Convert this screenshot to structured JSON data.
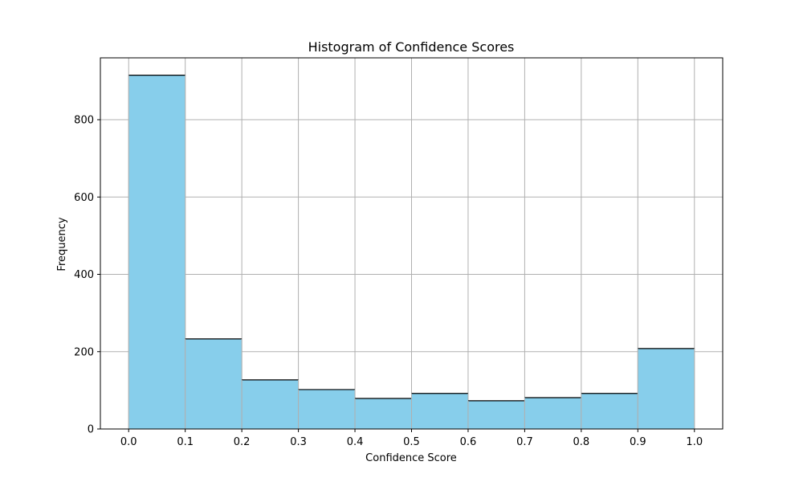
{
  "chart_data": {
    "type": "bar",
    "title": "Histogram of Confidence Scores",
    "xlabel": "Confidence Score",
    "ylabel": "Frequency",
    "bins": [
      {
        "start": 0.0,
        "end": 0.1,
        "count": 915
      },
      {
        "start": 0.1,
        "end": 0.2,
        "count": 233
      },
      {
        "start": 0.2,
        "end": 0.3,
        "count": 127
      },
      {
        "start": 0.3,
        "end": 0.4,
        "count": 102
      },
      {
        "start": 0.4,
        "end": 0.5,
        "count": 79
      },
      {
        "start": 0.5,
        "end": 0.6,
        "count": 92
      },
      {
        "start": 0.6,
        "end": 0.7,
        "count": 73
      },
      {
        "start": 0.7,
        "end": 0.8,
        "count": 81
      },
      {
        "start": 0.8,
        "end": 0.9,
        "count": 92
      },
      {
        "start": 0.9,
        "end": 1.0,
        "count": 208
      }
    ],
    "x_ticks": [
      "0.0",
      "0.1",
      "0.2",
      "0.3",
      "0.4",
      "0.5",
      "0.6",
      "0.7",
      "0.8",
      "0.9",
      "1.0"
    ],
    "y_ticks": [
      "0",
      "200",
      "400",
      "600",
      "800"
    ],
    "xlim": [
      -0.05,
      1.05
    ],
    "ylim": [
      0,
      960
    ],
    "grid": true,
    "colors": {
      "bar_fill": "#87ceeb",
      "bar_edge": "#000000",
      "grid": "#b0b0b0",
      "axes": "#000000"
    }
  }
}
